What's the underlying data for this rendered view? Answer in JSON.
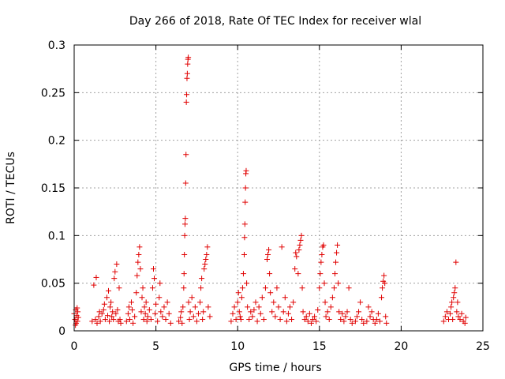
{
  "chart_data": {
    "type": "scatter",
    "title": "Day 266 of 2018, Rate Of TEC Index for receiver wlal",
    "xlabel": "GPS time / hours",
    "ylabel": "ROTI / TECUs",
    "xlim": [
      0,
      25
    ],
    "ylim": [
      0,
      0.3
    ],
    "xticks": [
      0,
      5,
      10,
      15,
      20,
      25
    ],
    "xtick_labels": [
      "0",
      "5",
      "10",
      "15",
      "20",
      "25"
    ],
    "yticks": [
      0,
      0.05,
      0.1,
      0.15,
      0.2,
      0.25,
      0.3
    ],
    "ytick_labels": [
      "0",
      "0.05",
      "0.1",
      "0.15",
      "0.2",
      "0.25",
      "0.3"
    ],
    "grid": true,
    "marker": "+",
    "marker_color": "#e00000",
    "series": [
      {
        "name": "ROTI",
        "points": [
          [
            0.0,
            0.018
          ],
          [
            0.05,
            0.012
          ],
          [
            0.1,
            0.022
          ],
          [
            0.12,
            0.008
          ],
          [
            0.15,
            0.016
          ],
          [
            0.2,
            0.01
          ],
          [
            0.22,
            0.02
          ],
          [
            0.25,
            0.014
          ],
          [
            0.08,
            0.006
          ],
          [
            0.18,
            0.024
          ],
          [
            1.1,
            0.01
          ],
          [
            1.2,
            0.048
          ],
          [
            1.3,
            0.012
          ],
          [
            1.35,
            0.056
          ],
          [
            1.4,
            0.008
          ],
          [
            1.5,
            0.015
          ],
          [
            1.55,
            0.02
          ],
          [
            1.6,
            0.01
          ],
          [
            1.7,
            0.018
          ],
          [
            1.8,
            0.022
          ],
          [
            1.85,
            0.028
          ],
          [
            1.9,
            0.012
          ],
          [
            2.0,
            0.035
          ],
          [
            2.05,
            0.016
          ],
          [
            2.1,
            0.042
          ],
          [
            2.15,
            0.01
          ],
          [
            2.2,
            0.025
          ],
          [
            2.25,
            0.03
          ],
          [
            2.3,
            0.015
          ],
          [
            2.35,
            0.02
          ],
          [
            2.4,
            0.012
          ],
          [
            2.45,
            0.055
          ],
          [
            2.5,
            0.062
          ],
          [
            2.55,
            0.018
          ],
          [
            2.6,
            0.07
          ],
          [
            2.65,
            0.022
          ],
          [
            2.7,
            0.01
          ],
          [
            2.75,
            0.045
          ],
          [
            2.8,
            0.012
          ],
          [
            2.85,
            0.008
          ],
          [
            3.2,
            0.01
          ],
          [
            3.3,
            0.018
          ],
          [
            3.35,
            0.025
          ],
          [
            3.4,
            0.012
          ],
          [
            3.5,
            0.03
          ],
          [
            3.55,
            0.022
          ],
          [
            3.6,
            0.008
          ],
          [
            3.7,
            0.015
          ],
          [
            3.8,
            0.04
          ],
          [
            3.85,
            0.058
          ],
          [
            3.9,
            0.072
          ],
          [
            3.95,
            0.08
          ],
          [
            4.0,
            0.088
          ],
          [
            4.05,
            0.065
          ],
          [
            4.1,
            0.02
          ],
          [
            4.15,
            0.035
          ],
          [
            4.2,
            0.045
          ],
          [
            4.25,
            0.012
          ],
          [
            4.3,
            0.025
          ],
          [
            4.35,
            0.018
          ],
          [
            4.4,
            0.03
          ],
          [
            4.45,
            0.01
          ],
          [
            4.5,
            0.015
          ],
          [
            4.6,
            0.022
          ],
          [
            4.7,
            0.012
          ],
          [
            4.8,
            0.045
          ],
          [
            4.85,
            0.065
          ],
          [
            4.9,
            0.055
          ],
          [
            4.95,
            0.018
          ],
          [
            5.0,
            0.028
          ],
          [
            5.1,
            0.01
          ],
          [
            5.2,
            0.035
          ],
          [
            5.25,
            0.05
          ],
          [
            5.3,
            0.02
          ],
          [
            5.4,
            0.015
          ],
          [
            5.5,
            0.025
          ],
          [
            5.6,
            0.012
          ],
          [
            5.7,
            0.03
          ],
          [
            5.8,
            0.018
          ],
          [
            5.9,
            0.008
          ],
          [
            6.4,
            0.01
          ],
          [
            6.5,
            0.014
          ],
          [
            6.55,
            0.02
          ],
          [
            6.6,
            0.008
          ],
          [
            6.65,
            0.025
          ],
          [
            6.7,
            0.045
          ],
          [
            6.72,
            0.06
          ],
          [
            6.74,
            0.08
          ],
          [
            6.76,
            0.1
          ],
          [
            6.78,
            0.112
          ],
          [
            6.8,
            0.118
          ],
          [
            6.82,
            0.155
          ],
          [
            6.84,
            0.185
          ],
          [
            6.86,
            0.24
          ],
          [
            6.88,
            0.248
          ],
          [
            6.9,
            0.265
          ],
          [
            6.92,
            0.27
          ],
          [
            6.94,
            0.28
          ],
          [
            6.96,
            0.285
          ],
          [
            6.98,
            0.287
          ],
          [
            7.0,
            0.03
          ],
          [
            7.05,
            0.012
          ],
          [
            7.1,
            0.02
          ],
          [
            7.2,
            0.035
          ],
          [
            7.3,
            0.015
          ],
          [
            7.4,
            0.025
          ],
          [
            7.5,
            0.01
          ],
          [
            7.6,
            0.018
          ],
          [
            7.7,
            0.03
          ],
          [
            7.75,
            0.045
          ],
          [
            7.8,
            0.055
          ],
          [
            7.85,
            0.012
          ],
          [
            7.9,
            0.02
          ],
          [
            7.95,
            0.065
          ],
          [
            8.0,
            0.07
          ],
          [
            8.05,
            0.075
          ],
          [
            8.1,
            0.08
          ],
          [
            8.15,
            0.088
          ],
          [
            8.2,
            0.025
          ],
          [
            8.3,
            0.015
          ],
          [
            9.6,
            0.01
          ],
          [
            9.7,
            0.018
          ],
          [
            9.8,
            0.025
          ],
          [
            9.9,
            0.012
          ],
          [
            10.0,
            0.03
          ],
          [
            10.05,
            0.04
          ],
          [
            10.1,
            0.02
          ],
          [
            10.15,
            0.015
          ],
          [
            10.2,
            0.012
          ],
          [
            10.25,
            0.035
          ],
          [
            10.3,
            0.045
          ],
          [
            10.35,
            0.06
          ],
          [
            10.4,
            0.08
          ],
          [
            10.42,
            0.098
          ],
          [
            10.44,
            0.112
          ],
          [
            10.46,
            0.135
          ],
          [
            10.48,
            0.15
          ],
          [
            10.5,
            0.165
          ],
          [
            10.52,
            0.168
          ],
          [
            10.55,
            0.05
          ],
          [
            10.6,
            0.025
          ],
          [
            10.7,
            0.012
          ],
          [
            10.8,
            0.02
          ],
          [
            10.9,
            0.015
          ],
          [
            11.0,
            0.022
          ],
          [
            11.1,
            0.03
          ],
          [
            11.2,
            0.01
          ],
          [
            11.3,
            0.025
          ],
          [
            11.4,
            0.018
          ],
          [
            11.5,
            0.035
          ],
          [
            11.6,
            0.012
          ],
          [
            11.7,
            0.045
          ],
          [
            11.8,
            0.075
          ],
          [
            11.85,
            0.08
          ],
          [
            11.9,
            0.085
          ],
          [
            11.95,
            0.06
          ],
          [
            12.0,
            0.04
          ],
          [
            12.1,
            0.02
          ],
          [
            12.2,
            0.03
          ],
          [
            12.3,
            0.015
          ],
          [
            12.4,
            0.045
          ],
          [
            12.5,
            0.025
          ],
          [
            12.6,
            0.012
          ],
          [
            12.7,
            0.088
          ],
          [
            12.8,
            0.02
          ],
          [
            12.9,
            0.035
          ],
          [
            13.0,
            0.01
          ],
          [
            13.1,
            0.018
          ],
          [
            13.2,
            0.025
          ],
          [
            13.3,
            0.012
          ],
          [
            13.4,
            0.03
          ],
          [
            13.5,
            0.065
          ],
          [
            13.55,
            0.082
          ],
          [
            13.6,
            0.078
          ],
          [
            13.7,
            0.06
          ],
          [
            13.75,
            0.085
          ],
          [
            13.8,
            0.09
          ],
          [
            13.85,
            0.095
          ],
          [
            13.9,
            0.1
          ],
          [
            13.95,
            0.045
          ],
          [
            14.0,
            0.02
          ],
          [
            14.1,
            0.012
          ],
          [
            14.2,
            0.015
          ],
          [
            14.3,
            0.01
          ],
          [
            14.4,
            0.018
          ],
          [
            14.5,
            0.008
          ],
          [
            14.6,
            0.012
          ],
          [
            14.7,
            0.015
          ],
          [
            14.8,
            0.01
          ],
          [
            14.9,
            0.022
          ],
          [
            15.0,
            0.045
          ],
          [
            15.05,
            0.06
          ],
          [
            15.1,
            0.072
          ],
          [
            15.15,
            0.08
          ],
          [
            15.2,
            0.088
          ],
          [
            15.25,
            0.09
          ],
          [
            15.3,
            0.05
          ],
          [
            15.35,
            0.03
          ],
          [
            15.4,
            0.015
          ],
          [
            15.5,
            0.02
          ],
          [
            15.6,
            0.012
          ],
          [
            15.7,
            0.025
          ],
          [
            15.8,
            0.035
          ],
          [
            15.9,
            0.045
          ],
          [
            15.95,
            0.06
          ],
          [
            16.0,
            0.072
          ],
          [
            16.05,
            0.082
          ],
          [
            16.1,
            0.09
          ],
          [
            16.15,
            0.05
          ],
          [
            16.2,
            0.02
          ],
          [
            16.3,
            0.012
          ],
          [
            16.4,
            0.018
          ],
          [
            16.5,
            0.01
          ],
          [
            16.6,
            0.015
          ],
          [
            16.7,
            0.02
          ],
          [
            16.8,
            0.045
          ],
          [
            16.9,
            0.012
          ],
          [
            17.0,
            0.008
          ],
          [
            17.2,
            0.01
          ],
          [
            17.3,
            0.015
          ],
          [
            17.4,
            0.02
          ],
          [
            17.5,
            0.03
          ],
          [
            17.6,
            0.012
          ],
          [
            17.7,
            0.008
          ],
          [
            17.9,
            0.01
          ],
          [
            18.0,
            0.025
          ],
          [
            18.1,
            0.015
          ],
          [
            18.2,
            0.02
          ],
          [
            18.3,
            0.012
          ],
          [
            18.4,
            0.008
          ],
          [
            18.5,
            0.012
          ],
          [
            18.6,
            0.018
          ],
          [
            18.7,
            0.01
          ],
          [
            18.8,
            0.035
          ],
          [
            18.85,
            0.045
          ],
          [
            18.9,
            0.052
          ],
          [
            18.95,
            0.058
          ],
          [
            19.0,
            0.05
          ],
          [
            19.05,
            0.015
          ],
          [
            19.1,
            0.008
          ],
          [
            22.6,
            0.01
          ],
          [
            22.7,
            0.015
          ],
          [
            22.8,
            0.02
          ],
          [
            22.9,
            0.012
          ],
          [
            23.0,
            0.018
          ],
          [
            23.05,
            0.025
          ],
          [
            23.1,
            0.03
          ],
          [
            23.15,
            0.012
          ],
          [
            23.2,
            0.035
          ],
          [
            23.25,
            0.04
          ],
          [
            23.3,
            0.045
          ],
          [
            23.35,
            0.072
          ],
          [
            23.4,
            0.02
          ],
          [
            23.45,
            0.03
          ],
          [
            23.5,
            0.015
          ],
          [
            23.6,
            0.012
          ],
          [
            23.7,
            0.018
          ],
          [
            23.8,
            0.01
          ],
          [
            23.9,
            0.008
          ],
          [
            23.95,
            0.014
          ]
        ]
      }
    ]
  }
}
